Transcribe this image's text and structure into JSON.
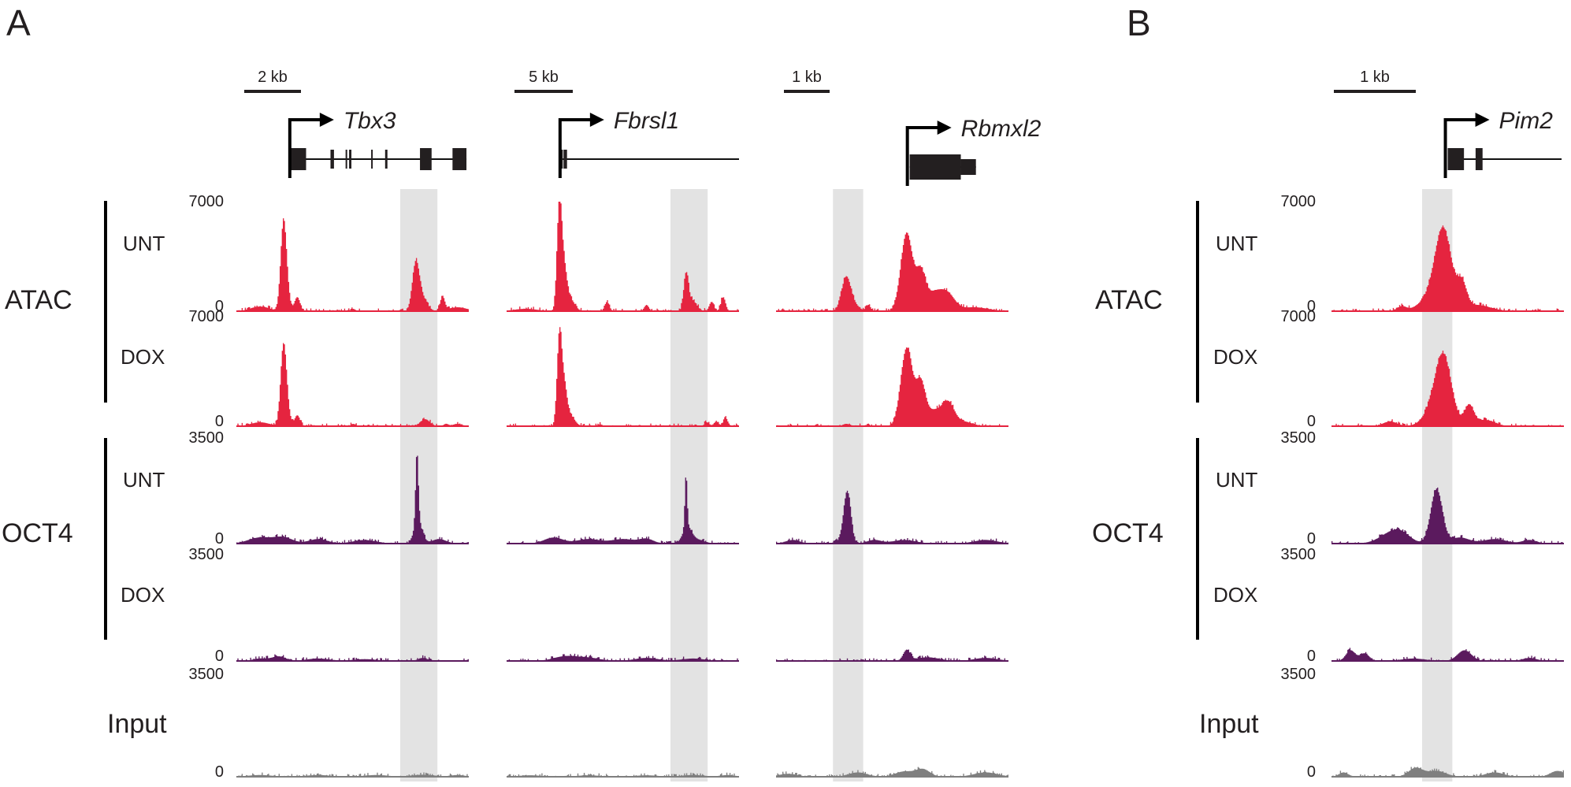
{
  "figure": {
    "panels": [
      {
        "letter": "A"
      },
      {
        "letter": "B"
      }
    ],
    "groups": {
      "atac": "ATAC",
      "oct4": "OCT4",
      "input": "Input"
    },
    "conditions": {
      "unt": "UNT",
      "dox": "DOX"
    },
    "colors": {
      "atac": "#e5243f",
      "oct4": "#5b1a5e",
      "input": "#7f7f7f",
      "highlight": "#e3e3e3",
      "text": "#231f20"
    }
  },
  "chart_data": {
    "type": "area",
    "title": "Genome browser tracks: ATAC-seq and OCT4 ChIP-seq, untreated (UNT) vs doxycycline (DOX)",
    "tracks": [
      {
        "key": "atac_unt",
        "group": "ATAC",
        "condition": "UNT",
        "ylim": [
          0,
          7000
        ],
        "ticks": [
          "7000",
          "0"
        ]
      },
      {
        "key": "atac_dox",
        "group": "ATAC",
        "condition": "DOX",
        "ylim": [
          0,
          7000
        ],
        "ticks": [
          "7000",
          "0"
        ]
      },
      {
        "key": "oct4_unt",
        "group": "OCT4",
        "condition": "UNT",
        "ylim": [
          0,
          3500
        ],
        "ticks": [
          "3500",
          "0"
        ]
      },
      {
        "key": "oct4_dox",
        "group": "OCT4",
        "condition": "DOX",
        "ylim": [
          0,
          3500
        ],
        "ticks": [
          "3500",
          "0"
        ]
      },
      {
        "key": "input",
        "group": "Input",
        "condition": "",
        "ylim": [
          0,
          3500
        ],
        "ticks": [
          "3500",
          "0"
        ]
      }
    ],
    "loci": [
      {
        "panel": "A",
        "gene": "Tbx3",
        "scale_bar": "2 kb",
        "highlight_range": [
          0.705,
          0.865
        ],
        "gene_model": {
          "tss": 0.23,
          "exons": [
            [
              0.225,
              0.3
            ],
            [
              0.405,
              0.42
            ],
            [
              0.47,
              0.475
            ],
            [
              0.485,
              0.495
            ],
            [
              0.58,
              0.585
            ],
            [
              0.64,
              0.65
            ],
            [
              0.79,
              0.84
            ],
            [
              0.93,
              0.99
            ]
          ],
          "line": [
            0.225,
            0.99
          ]
        },
        "peaks": {
          "atac_unt": [
            [
              0.2,
              5300,
              0.012
            ],
            [
              0.215,
              1200,
              0.012
            ],
            [
              0.26,
              900,
              0.012
            ],
            [
              0.1,
              300,
              0.04
            ],
            [
              0.5,
              150,
              0.01
            ],
            [
              0.77,
              3000,
              0.015
            ],
            [
              0.8,
              800,
              0.02
            ],
            [
              0.885,
              900,
              0.01
            ],
            [
              0.95,
              250,
              0.04
            ]
          ],
          "atac_dox": [
            [
              0.2,
              4800,
              0.012
            ],
            [
              0.215,
              1100,
              0.012
            ],
            [
              0.26,
              700,
              0.012
            ],
            [
              0.1,
              250,
              0.04
            ],
            [
              0.5,
              150,
              0.01
            ],
            [
              0.81,
              450,
              0.02
            ],
            [
              0.9,
              150,
              0.01
            ],
            [
              0.95,
              150,
              0.02
            ]
          ],
          "oct4_unt": [
            [
              0.775,
              2300,
              0.006
            ],
            [
              0.78,
              700,
              0.018
            ],
            [
              0.1,
              200,
              0.05
            ],
            [
              0.2,
              200,
              0.04
            ],
            [
              0.35,
              150,
              0.04
            ],
            [
              0.55,
              120,
              0.05
            ],
            [
              0.87,
              150,
              0.03
            ]
          ],
          "oct4_dox": [
            [
              0.18,
              150,
              0.03
            ],
            [
              0.1,
              80,
              0.03
            ],
            [
              0.35,
              80,
              0.05
            ],
            [
              0.8,
              100,
              0.02
            ],
            [
              0.55,
              60,
              0.05
            ]
          ],
          "input": [
            [
              0.1,
              60,
              0.05
            ],
            [
              0.35,
              60,
              0.05
            ],
            [
              0.6,
              60,
              0.05
            ],
            [
              0.8,
              70,
              0.05
            ],
            [
              0.95,
              60,
              0.03
            ]
          ]
        }
      },
      {
        "panel": "A",
        "gene": "Fbrsl1",
        "scale_bar": "5 kb",
        "highlight_range": [
          0.705,
          0.865
        ],
        "gene_model": {
          "tss": 0.23,
          "exons": [
            [
              0.235,
              0.24
            ],
            [
              0.245,
              0.26
            ]
          ],
          "line": [
            0.24,
            1.0
          ]
        },
        "peaks": {
          "atac_unt": [
            [
              0.225,
              6800,
              0.01
            ],
            [
              0.245,
              2500,
              0.012
            ],
            [
              0.27,
              800,
              0.02
            ],
            [
              0.43,
              600,
              0.01
            ],
            [
              0.6,
              400,
              0.01
            ],
            [
              0.77,
              2200,
              0.01
            ],
            [
              0.795,
              700,
              0.02
            ],
            [
              0.88,
              600,
              0.01
            ],
            [
              0.93,
              900,
              0.01
            ],
            [
              0.08,
              150,
              0.05
            ]
          ],
          "atac_dox": [
            [
              0.225,
              5600,
              0.01
            ],
            [
              0.245,
              2400,
              0.012
            ],
            [
              0.27,
              700,
              0.02
            ],
            [
              0.4,
              120,
              0.01
            ],
            [
              0.86,
              250,
              0.01
            ],
            [
              0.9,
              300,
              0.01
            ],
            [
              0.94,
              500,
              0.01
            ]
          ],
          "oct4_unt": [
            [
              0.77,
              1800,
              0.005
            ],
            [
              0.775,
              500,
              0.02
            ],
            [
              0.2,
              200,
              0.04
            ],
            [
              0.35,
              150,
              0.05
            ],
            [
              0.5,
              150,
              0.05
            ],
            [
              0.6,
              150,
              0.03
            ],
            [
              0.82,
              120,
              0.03
            ]
          ],
          "oct4_dox": [
            [
              0.25,
              150,
              0.05
            ],
            [
              0.35,
              100,
              0.05
            ],
            [
              0.6,
              100,
              0.05
            ],
            [
              0.8,
              80,
              0.05
            ]
          ],
          "input": [
            [
              0.1,
              50,
              0.05
            ],
            [
              0.35,
              50,
              0.05
            ],
            [
              0.6,
              50,
              0.05
            ],
            [
              0.8,
              60,
              0.05
            ],
            [
              0.95,
              60,
              0.03
            ]
          ]
        }
      },
      {
        "panel": "A",
        "gene": "Rbmxl2",
        "scale_bar": "1 kb",
        "highlight_range": [
          0.245,
          0.375
        ],
        "gene_model": {
          "tss": 0.565,
          "exons": [
            [
              0.575,
              0.795
            ],
            [
              0.795,
              0.86
            ]
          ],
          "line": [
            0.575,
            0.86
          ]
        },
        "peaks": {
          "atac_unt": [
            [
              0.3,
              2200,
              0.02
            ],
            [
              0.34,
              300,
              0.02
            ],
            [
              0.395,
              400,
              0.01
            ],
            [
              0.56,
              5000,
              0.025
            ],
            [
              0.62,
              2200,
              0.02
            ],
            [
              0.68,
              1200,
              0.04
            ],
            [
              0.74,
              800,
              0.03
            ],
            [
              0.85,
              250,
              0.06
            ]
          ],
          "atac_dox": [
            [
              0.3,
              150,
              0.015
            ],
            [
              0.56,
              5000,
              0.025
            ],
            [
              0.62,
              2500,
              0.02
            ],
            [
              0.68,
              1000,
              0.04
            ],
            [
              0.74,
              1200,
              0.025
            ],
            [
              0.8,
              300,
              0.04
            ]
          ],
          "oct4_unt": [
            [
              0.305,
              1600,
              0.015
            ],
            [
              0.29,
              200,
              0.02
            ],
            [
              0.07,
              120,
              0.03
            ],
            [
              0.42,
              120,
              0.03
            ],
            [
              0.55,
              120,
              0.05
            ],
            [
              0.9,
              120,
              0.05
            ]
          ],
          "oct4_dox": [
            [
              0.56,
              350,
              0.015
            ],
            [
              0.65,
              120,
              0.05
            ],
            [
              0.9,
              100,
              0.05
            ]
          ],
          "input": [
            [
              0.05,
              100,
              0.04
            ],
            [
              0.35,
              150,
              0.04
            ],
            [
              0.55,
              180,
              0.04
            ],
            [
              0.63,
              250,
              0.03
            ],
            [
              0.9,
              150,
              0.05
            ]
          ]
        }
      },
      {
        "panel": "B",
        "gene": "Pim2",
        "scale_bar": "1 kb",
        "highlight_range": [
          0.39,
          0.52
        ],
        "gene_model": {
          "tss": 0.49,
          "exons": [
            [
              0.5,
              0.57
            ],
            [
              0.62,
              0.65
            ]
          ],
          "line": [
            0.5,
            0.99
          ]
        },
        "peaks": {
          "atac_unt": [
            [
              0.48,
              4800,
              0.035
            ],
            [
              0.43,
              900,
              0.05
            ],
            [
              0.56,
              1500,
              0.02
            ],
            [
              0.3,
              300,
              0.02
            ],
            [
              0.62,
              400,
              0.06
            ]
          ],
          "atac_dox": [
            [
              0.48,
              4300,
              0.035
            ],
            [
              0.43,
              800,
              0.04
            ],
            [
              0.59,
              1300,
              0.02
            ],
            [
              0.25,
              300,
              0.03
            ],
            [
              0.66,
              400,
              0.04
            ]
          ],
          "oct4_unt": [
            [
              0.45,
              1800,
              0.025
            ],
            [
              0.25,
              300,
              0.05
            ],
            [
              0.3,
              250,
              0.04
            ],
            [
              0.55,
              200,
              0.04
            ],
            [
              0.7,
              150,
              0.05
            ],
            [
              0.85,
              120,
              0.03
            ]
          ],
          "oct4_dox": [
            [
              0.08,
              350,
              0.02
            ],
            [
              0.14,
              250,
              0.02
            ],
            [
              0.57,
              350,
              0.03
            ],
            [
              0.35,
              80,
              0.05
            ],
            [
              0.85,
              100,
              0.03
            ]
          ],
          "input": [
            [
              0.05,
              150,
              0.02
            ],
            [
              0.36,
              300,
              0.03
            ],
            [
              0.45,
              200,
              0.04
            ],
            [
              0.7,
              150,
              0.04
            ],
            [
              0.97,
              200,
              0.03
            ]
          ]
        }
      }
    ]
  }
}
